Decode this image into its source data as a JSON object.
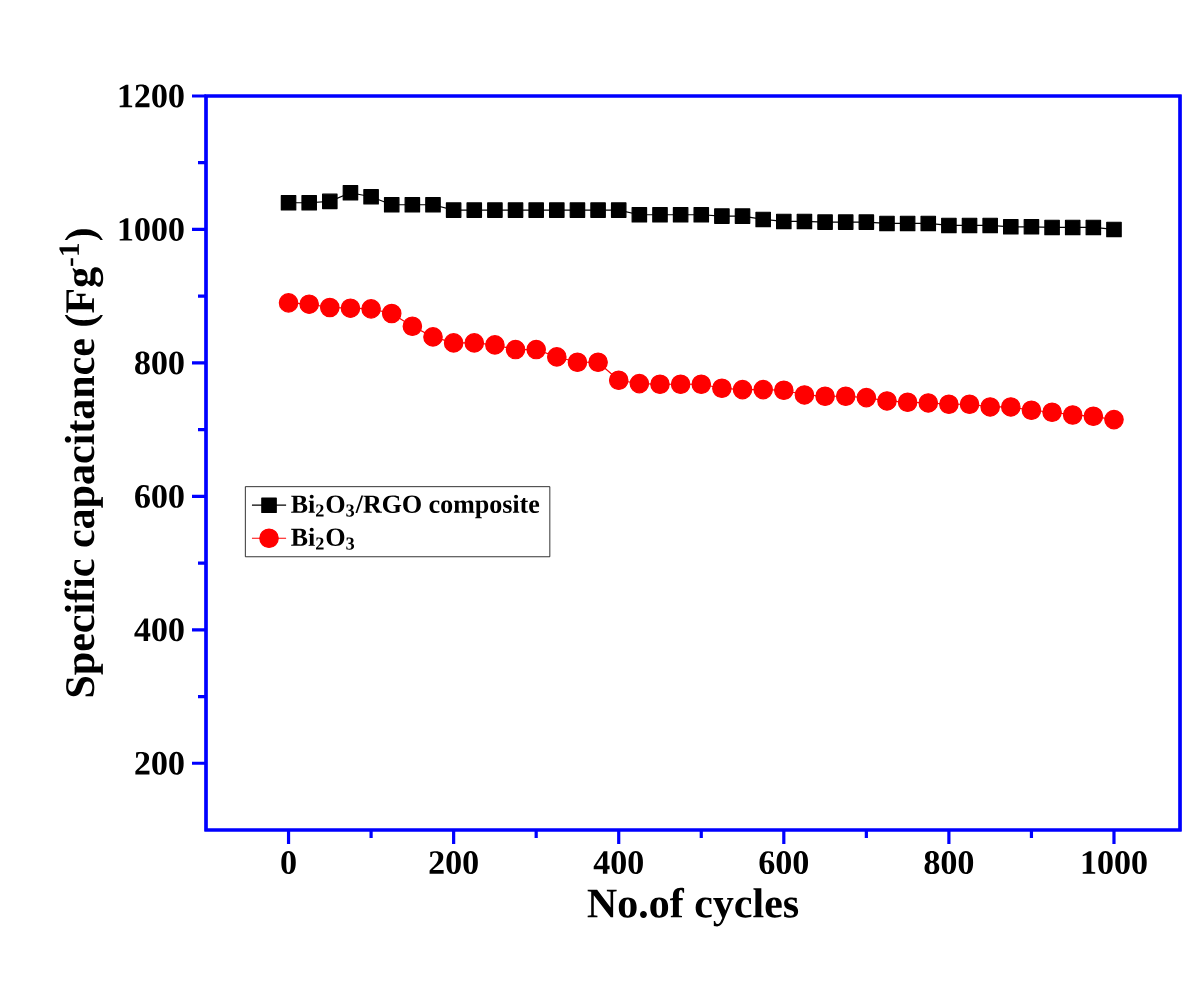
{
  "chart_data": {
    "type": "line",
    "xlabel": "No.of cycles",
    "ylabel": "Specific capacitance (Fg$^{-1}$)",
    "x": [
      0,
      25,
      50,
      75,
      100,
      125,
      150,
      175,
      200,
      225,
      250,
      275,
      300,
      325,
      350,
      375,
      400,
      425,
      450,
      475,
      500,
      525,
      550,
      575,
      600,
      625,
      650,
      675,
      700,
      725,
      750,
      775,
      800,
      825,
      850,
      875,
      900,
      925,
      950,
      975,
      1000
    ],
    "series": [
      {
        "name": "Bi$_{2}$O$_{3}$/RGO composite",
        "color": "#000000",
        "marker": "square",
        "values": [
          1040,
          1040,
          1042,
          1055,
          1049,
          1037,
          1037,
          1037,
          1029,
          1029,
          1029,
          1029,
          1029,
          1029,
          1029,
          1029,
          1029,
          1022,
          1022,
          1022,
          1022,
          1020,
          1020,
          1015,
          1012,
          1012,
          1011,
          1011,
          1011,
          1009,
          1009,
          1009,
          1006,
          1006,
          1006,
          1004,
          1004,
          1003,
          1003,
          1003,
          1000
        ]
      },
      {
        "name": "Bi$_{2}$O$_{3}$",
        "color": "#ff0000",
        "marker": "circle",
        "values": [
          890,
          888,
          883,
          882,
          881,
          874,
          855,
          839,
          830,
          830,
          827,
          820,
          820,
          809,
          801,
          801,
          774,
          769,
          768,
          768,
          768,
          762,
          760,
          760,
          759,
          752,
          750,
          750,
          748,
          743,
          741,
          740,
          738,
          738,
          734,
          734,
          729,
          726,
          722,
          720,
          715
        ]
      }
    ],
    "xlim": [
      -100,
      1080
    ],
    "ylim": [
      100,
      1200
    ],
    "xticks": [
      0,
      200,
      400,
      600,
      800,
      1000
    ],
    "yticks": [
      200,
      400,
      600,
      800,
      1000,
      1200
    ],
    "legend": "left",
    "line_style": "solid"
  }
}
